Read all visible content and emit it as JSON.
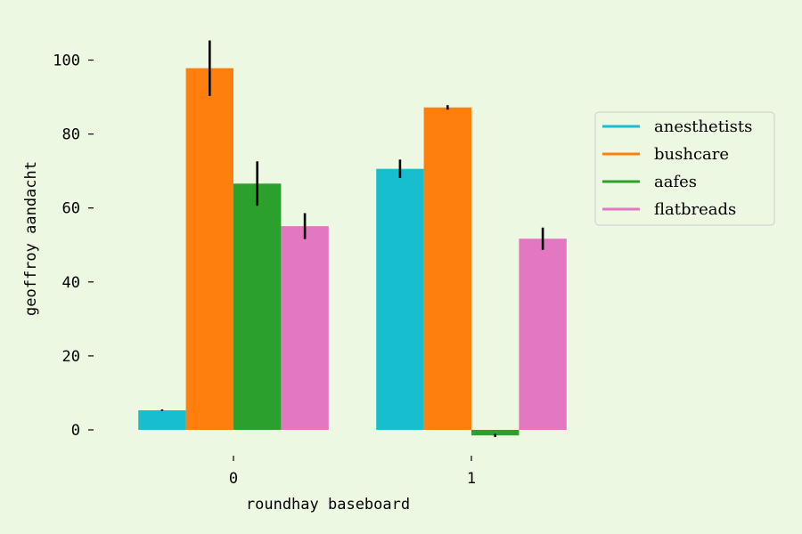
{
  "chart_data": {
    "type": "bar",
    "categories": [
      "0",
      "1"
    ],
    "xlabel": "roundhay baseboard",
    "ylabel": "geoffroy aandacht",
    "ylim": [
      -5,
      110
    ],
    "yticks": [
      0,
      20,
      40,
      60,
      80,
      100
    ],
    "grid": false,
    "legend_position": "right",
    "series": [
      {
        "name": "anesthetists",
        "color": "#17becf",
        "values": [
          5.3,
          70.6
        ],
        "errors": [
          0.2,
          2.5
        ]
      },
      {
        "name": "bushcare",
        "color": "#ff7f0e",
        "values": [
          97.8,
          87.2
        ],
        "errors": [
          7.5,
          0.6
        ]
      },
      {
        "name": "aafes",
        "color": "#2ca02c",
        "values": [
          66.6,
          -1.5
        ],
        "errors": [
          6.0,
          0.4
        ]
      },
      {
        "name": "flatbreads",
        "color": "#e377c2",
        "values": [
          55.1,
          51.7
        ],
        "errors": [
          3.5,
          3.0
        ]
      }
    ]
  }
}
